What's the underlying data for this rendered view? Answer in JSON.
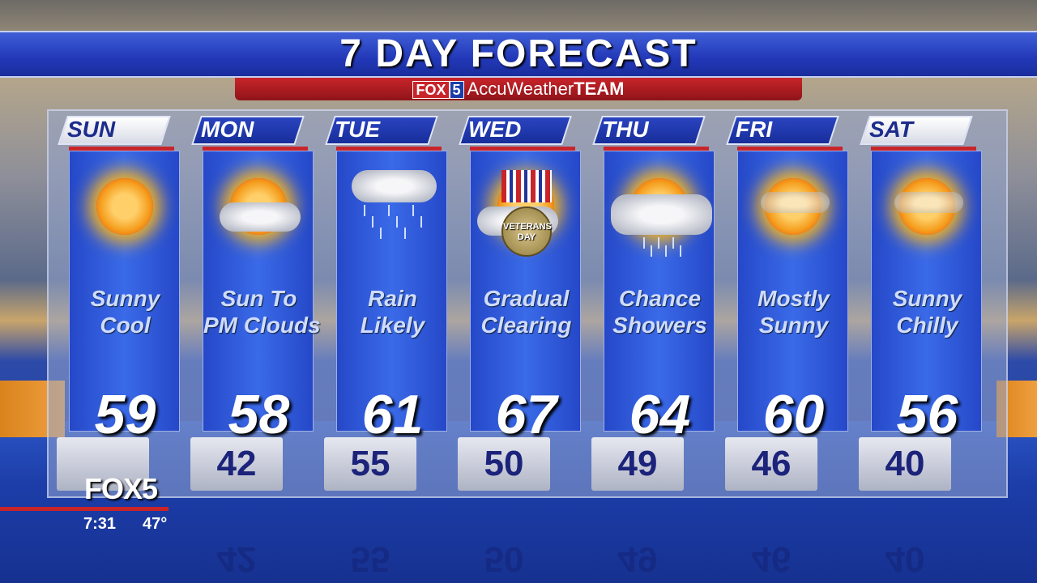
{
  "header": {
    "title": "7 DAY FORECAST",
    "sub_fox": "FOX",
    "sub_five": "5",
    "sub_brand": "AccuWeather",
    "sub_team": "TEAM"
  },
  "colors": {
    "title_bar": "#2238b8",
    "sub_bar": "#c8242a",
    "panel": "#3a6ae8",
    "low_text": "#1c237a"
  },
  "days": [
    {
      "day": "SUN",
      "condition": [
        "Sunny",
        "Cool"
      ],
      "high": "59",
      "low": "",
      "icon": "sun-icon",
      "tab_style": "white"
    },
    {
      "day": "MON",
      "condition": [
        "Sun To",
        "PM Clouds"
      ],
      "high": "58",
      "low": "42",
      "icon": "sun-cloud-icon",
      "tab_style": "blue"
    },
    {
      "day": "TUE",
      "condition": [
        "Rain",
        "Likely"
      ],
      "high": "61",
      "low": "55",
      "icon": "rain-cloud-icon",
      "tab_style": "blue"
    },
    {
      "day": "WED",
      "condition": [
        "Gradual",
        "Clearing"
      ],
      "high": "67",
      "low": "50",
      "icon": "veterans-day-medal-icon",
      "icon_text": "VETERANS DAY",
      "tab_style": "blue"
    },
    {
      "day": "THU",
      "condition": [
        "Chance",
        "Showers"
      ],
      "high": "64",
      "low": "49",
      "icon": "sun-shower-icon",
      "tab_style": "blue"
    },
    {
      "day": "FRI",
      "condition": [
        "Mostly",
        "Sunny"
      ],
      "high": "60",
      "low": "46",
      "icon": "mostly-sunny-icon",
      "tab_style": "blue"
    },
    {
      "day": "SAT",
      "condition": [
        "Sunny",
        "Chilly"
      ],
      "high": "56",
      "low": "40",
      "icon": "sun-haze-icon",
      "tab_style": "white"
    }
  ],
  "bug": {
    "logo": "FOX5",
    "time": "7:31",
    "temperature": "47°"
  }
}
